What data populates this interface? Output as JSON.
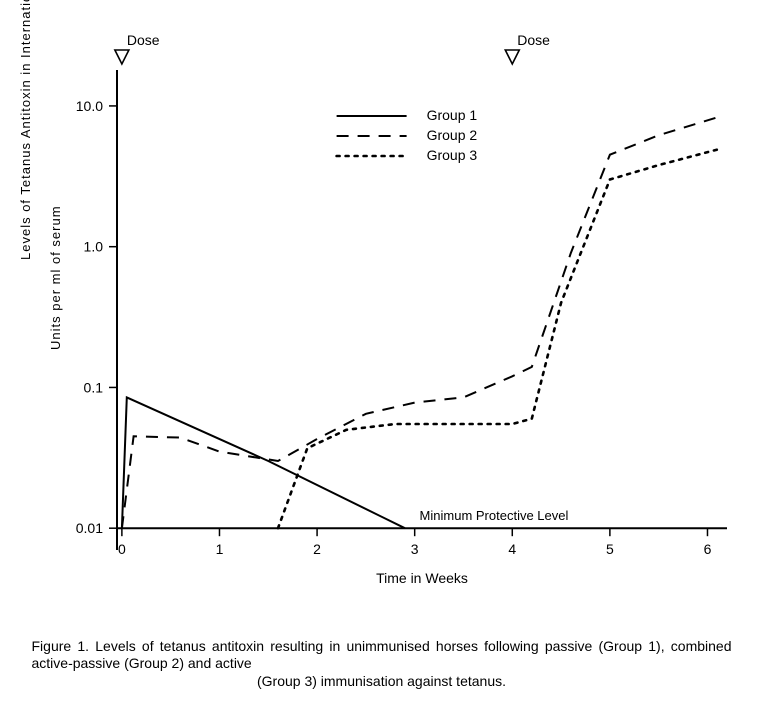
{
  "chart": {
    "type": "line",
    "scale_y": "log",
    "title": "",
    "xlabel": "Time in Weeks",
    "ylabel_outer": "Levels of Tetanus Antitoxin in International (IE)",
    "ylabel_inner": "Units per ml of serum",
    "x_ticks": [
      0,
      1,
      2,
      3,
      4,
      5,
      6
    ],
    "x_tick_labels": [
      "0",
      "1",
      "2",
      "3",
      "4",
      "5",
      "6"
    ],
    "y_ticks": [
      0.01,
      0.1,
      1.0,
      10.0
    ],
    "y_tick_labels": [
      "0.01",
      "0.1",
      "1.0",
      "10.0"
    ],
    "xlim": [
      -0.05,
      6.2
    ],
    "ylim": [
      0.007,
      18
    ],
    "dose_markers": {
      "label": "Dose",
      "x_positions": [
        0,
        4
      ]
    },
    "min_protective": {
      "label": "Minimum Protective Level",
      "value": 0.01
    },
    "background_color": "#ffffff",
    "axis_color": "#000000",
    "legend": {
      "items": [
        {
          "label": "Group 1",
          "style": "solid"
        },
        {
          "label": "Group 2",
          "style": "dashed"
        },
        {
          "label": "Group 3",
          "style": "dotted"
        }
      ]
    },
    "series": [
      {
        "name": "Group 1",
        "style": "solid",
        "color": "#000000",
        "points": [
          {
            "x": 0.0,
            "y": 0.01
          },
          {
            "x": 0.05,
            "y": 0.085
          },
          {
            "x": 1.5,
            "y": 0.03
          },
          {
            "x": 2.9,
            "y": 0.01
          }
        ]
      },
      {
        "name": "Group 2",
        "style": "dashed",
        "color": "#000000",
        "points": [
          {
            "x": 0.0,
            "y": 0.01
          },
          {
            "x": 0.12,
            "y": 0.045
          },
          {
            "x": 0.6,
            "y": 0.044
          },
          {
            "x": 1.0,
            "y": 0.035
          },
          {
            "x": 1.6,
            "y": 0.03
          },
          {
            "x": 2.0,
            "y": 0.043
          },
          {
            "x": 2.5,
            "y": 0.065
          },
          {
            "x": 3.0,
            "y": 0.078
          },
          {
            "x": 3.5,
            "y": 0.085
          },
          {
            "x": 4.0,
            "y": 0.12
          },
          {
            "x": 4.2,
            "y": 0.14
          },
          {
            "x": 4.6,
            "y": 0.9
          },
          {
            "x": 5.0,
            "y": 4.5
          },
          {
            "x": 5.5,
            "y": 6.2
          },
          {
            "x": 6.15,
            "y": 8.5
          }
        ]
      },
      {
        "name": "Group 3",
        "style": "dotted",
        "color": "#000000",
        "points": [
          {
            "x": 1.6,
            "y": 0.01
          },
          {
            "x": 1.9,
            "y": 0.037
          },
          {
            "x": 2.3,
            "y": 0.05
          },
          {
            "x": 2.8,
            "y": 0.055
          },
          {
            "x": 3.3,
            "y": 0.055
          },
          {
            "x": 3.8,
            "y": 0.055
          },
          {
            "x": 4.0,
            "y": 0.055
          },
          {
            "x": 4.2,
            "y": 0.06
          },
          {
            "x": 4.5,
            "y": 0.4
          },
          {
            "x": 5.0,
            "y": 3.0
          },
          {
            "x": 5.5,
            "y": 3.8
          },
          {
            "x": 6.15,
            "y": 5.0
          }
        ]
      }
    ]
  },
  "caption": {
    "line1": "Figure 1. Levels of tetanus antitoxin resulting in unimmunised horses following passive (Group 1), combined active-passive (Group 2) and active",
    "line2": "(Group 3) immunisation against tetanus."
  }
}
